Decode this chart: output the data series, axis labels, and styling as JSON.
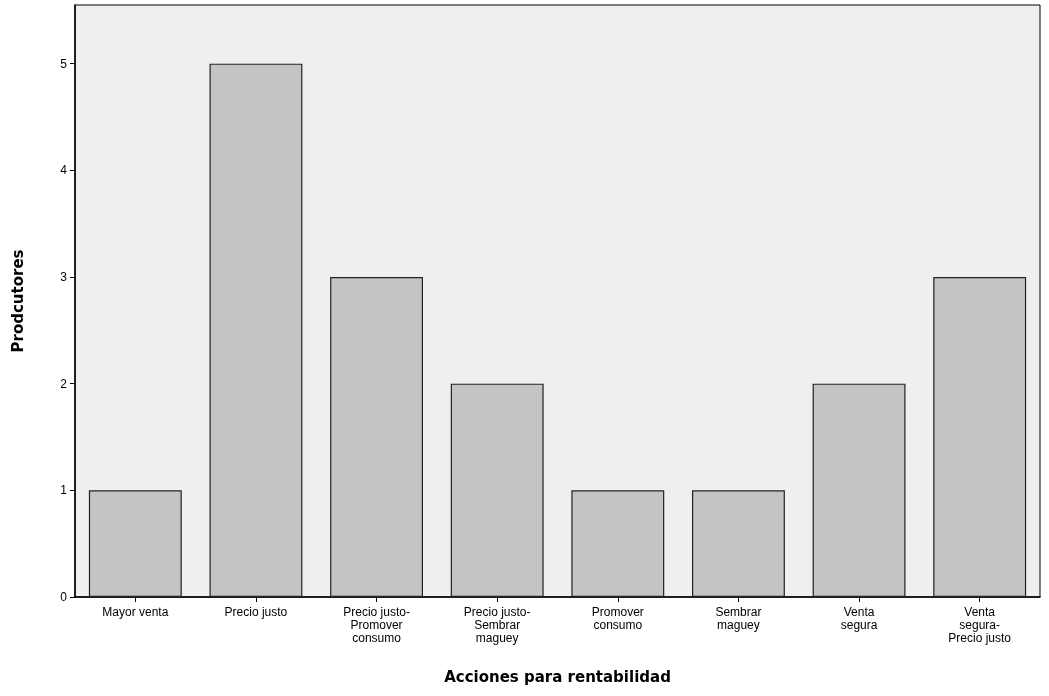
{
  "chart_data": {
    "type": "bar",
    "xlabel": "Acciones para rentabilidad",
    "ylabel": "Prodcutores",
    "categories": [
      "Mayor venta",
      "Precio justo",
      "Precio justo-\nPromover\nconsumo",
      "Precio justo-\nSembrar\nmaguey",
      "Promover\nconsumo",
      "Sembrar\nmaguey",
      "Venta\nsegura",
      "Venta\nsegura-\nPrecio justo"
    ],
    "values": [
      1,
      5,
      3,
      2,
      1,
      1,
      2,
      3
    ],
    "color": "#c4c4c4",
    "ylim": [
      0,
      5.55
    ],
    "yticks": [
      0,
      1,
      2,
      3,
      4,
      5
    ],
    "grid": false
  }
}
